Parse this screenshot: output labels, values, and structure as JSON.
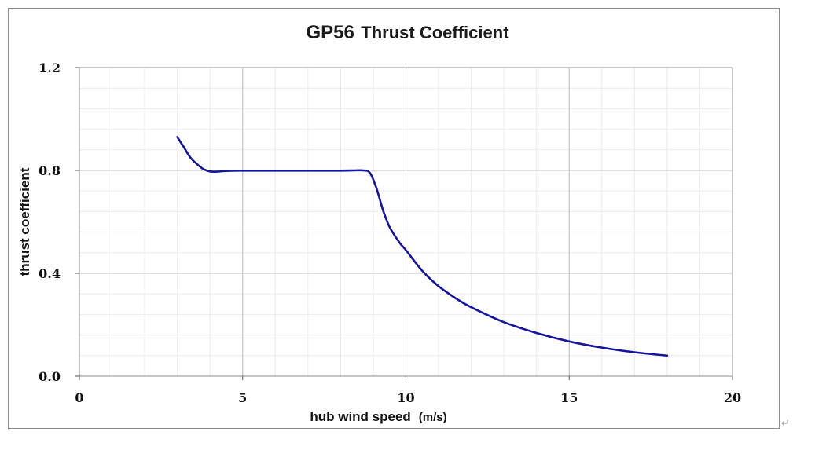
{
  "chart_data": {
    "type": "line",
    "title_model": "GP56",
    "title": "Thrust Coefficient",
    "xlabel": "hub wind speed",
    "xlabel_unit": "(m/s)",
    "ylabel": "thrust coefficient",
    "xlim": [
      0,
      20
    ],
    "ylim": [
      0.0,
      1.2
    ],
    "x_ticks": [
      0,
      5,
      10,
      15,
      20
    ],
    "x_tick_labels": [
      "0",
      "5",
      "10",
      "15",
      "20"
    ],
    "y_ticks": [
      0.0,
      0.4,
      0.8,
      1.2
    ],
    "y_tick_labels": [
      "0.0",
      "0.4",
      "0.8",
      "1.2"
    ],
    "grid": true,
    "minor_grid": true,
    "legend": "none",
    "series": [
      {
        "color": "#1414a0",
        "x": [
          3.0,
          3.2,
          3.4,
          3.6,
          3.8,
          4.0,
          4.2,
          4.5,
          5.0,
          6.0,
          7.0,
          8.0,
          8.4,
          8.7,
          8.9,
          9.1,
          9.3,
          9.5,
          9.8,
          10.0,
          10.5,
          11.0,
          11.5,
          12.0,
          13.0,
          14.0,
          15.0,
          16.0,
          17.0,
          18.0
        ],
        "y": [
          0.93,
          0.89,
          0.85,
          0.825,
          0.805,
          0.796,
          0.795,
          0.798,
          0.799,
          0.799,
          0.799,
          0.799,
          0.8,
          0.8,
          0.79,
          0.73,
          0.645,
          0.58,
          0.52,
          0.49,
          0.41,
          0.35,
          0.305,
          0.268,
          0.21,
          0.168,
          0.135,
          0.111,
          0.093,
          0.08
        ]
      }
    ]
  },
  "colors": {
    "line": "#1414a0",
    "grid_major": "#bdbdbd",
    "grid_minor": "#ebebeb",
    "frame": "#8c8c8c"
  },
  "return_glyph": "↵"
}
